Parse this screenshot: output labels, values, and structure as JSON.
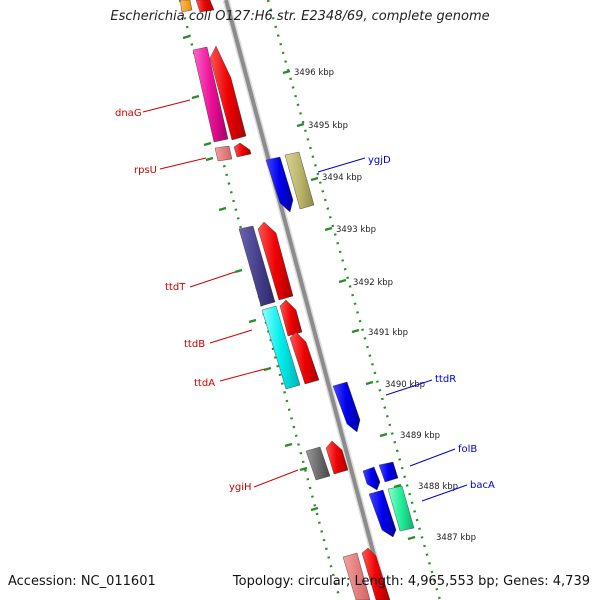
{
  "header": {
    "title": "Escherichia coli O127:H6 str. E2348/69, complete genome"
  },
  "footer": {
    "accession": "Accession: NC_011601",
    "summary": "Topology: circular; Length: 4,965,553 bp; Genes: 4,739"
  },
  "colors": {
    "backbone": "#999999",
    "ring_dots": "#2e8b2e",
    "forward_label": "#cc0000",
    "reverse_label": "#0000cc"
  },
  "ticks": [
    "3496 kbp",
    "3495 kbp",
    "3494 kbp",
    "3493 kbp",
    "3492 kbp",
    "3491 kbp",
    "3490 kbp",
    "3489 kbp",
    "3488 kbp",
    "3487 kbp"
  ],
  "genes": {
    "dnaG": "dnaG",
    "rpsU": "rpsU",
    "ttdT": "ttdT",
    "ttdB": "ttdB",
    "ttdA": "ttdA",
    "ygiH": "ygiH",
    "ygjD": "ygjD",
    "ttdR": "ttdR",
    "folB": "folB",
    "bacA": "bacA"
  }
}
